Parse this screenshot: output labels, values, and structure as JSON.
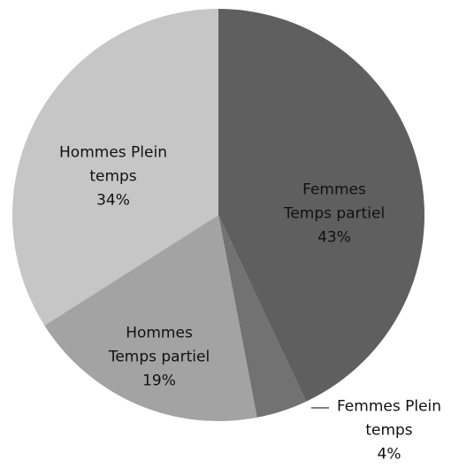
{
  "chart_data": {
    "type": "pie",
    "categories": [
      "Femmes Temps partiel",
      "Femmes Plein temps",
      "Hommes Temps partiel",
      "Hommes Plein temps"
    ],
    "values": [
      43,
      4,
      19,
      34
    ],
    "value_labels": [
      "43%",
      "4%",
      "19%",
      "34%"
    ],
    "colors": [
      "#5f5f5f",
      "#727272",
      "#a3a3a3",
      "#c6c6c6"
    ]
  }
}
